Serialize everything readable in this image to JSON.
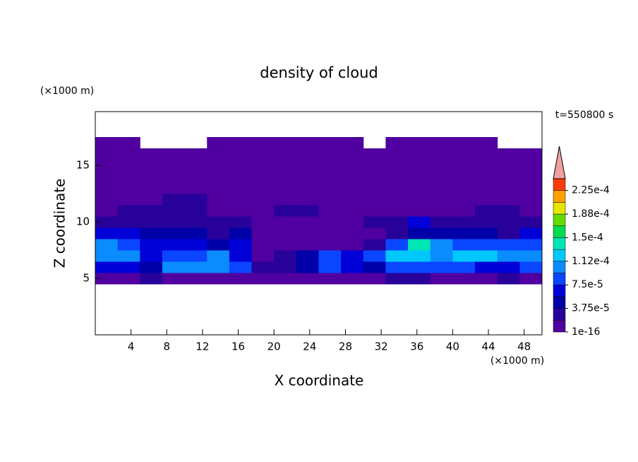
{
  "chart_data": {
    "type": "contour",
    "title": "density of cloud",
    "xlabel": "X coordinate",
    "ylabel": "Z coordinate",
    "xunit": "(×1000 m)",
    "yunit": "(×1000 m)",
    "time_label": "t=550800 s",
    "xlim": [
      0,
      50
    ],
    "ylim": [
      0,
      19.75
    ],
    "xticks": [
      4,
      8,
      12,
      16,
      20,
      24,
      28,
      32,
      36,
      40,
      44,
      48
    ],
    "yticks": [
      5,
      10,
      15
    ],
    "x": [
      1.25,
      3.75,
      6.25,
      8.75,
      11.25,
      13.75,
      16.25,
      18.75,
      21.25,
      23.75,
      26.25,
      28.75,
      31.25,
      33.75,
      36.25,
      38.75,
      41.25,
      43.75,
      46.25,
      48.75
    ],
    "y": [
      5,
      6,
      7,
      8,
      9,
      10,
      11,
      12,
      13,
      14,
      15,
      16,
      17
    ],
    "z": [
      [
        5e-06,
        5e-06,
        2.5e-05,
        5e-06,
        5e-06,
        5e-06,
        5e-06,
        5e-06,
        5e-06,
        5e-06,
        5e-06,
        5e-06,
        5e-06,
        2.5e-05,
        2.5e-05,
        5e-06,
        5e-06,
        5e-06,
        2.5e-05,
        5e-06
      ],
      [
        6e-05,
        6e-05,
        4.5e-05,
        0.000105,
        0.000105,
        0.000105,
        8.5e-05,
        2.5e-05,
        2.5e-05,
        4.5e-05,
        8.5e-05,
        6e-05,
        4.5e-05,
        8.5e-05,
        8.5e-05,
        8.5e-05,
        8.5e-05,
        6e-05,
        6e-05,
        8.5e-05
      ],
      [
        0.000105,
        0.000105,
        6e-05,
        8.5e-05,
        8.5e-05,
        0.000105,
        6e-05,
        5e-06,
        2.5e-05,
        4.5e-05,
        8.5e-05,
        6e-05,
        8.5e-05,
        0.00012,
        0.00012,
        0.000105,
        0.00012,
        0.00012,
        0.000105,
        0.000105
      ],
      [
        0.000105,
        8.5e-05,
        6e-05,
        6e-05,
        6e-05,
        4.5e-05,
        6e-05,
        5e-06,
        5e-06,
        5e-06,
        5e-06,
        5e-06,
        2.5e-05,
        8.5e-05,
        0.00014,
        0.000105,
        8.5e-05,
        8.5e-05,
        8.5e-05,
        8.5e-05
      ],
      [
        6e-05,
        6e-05,
        4.5e-05,
        4.5e-05,
        4.5e-05,
        2.5e-05,
        4.5e-05,
        5e-06,
        5e-06,
        5e-06,
        5e-06,
        5e-06,
        5e-06,
        2.5e-05,
        4.5e-05,
        4.5e-05,
        4.5e-05,
        4.5e-05,
        2.5e-05,
        6e-05
      ],
      [
        2.5e-05,
        2.5e-05,
        2.5e-05,
        2.5e-05,
        2.5e-05,
        2.5e-05,
        2.5e-05,
        5e-06,
        5e-06,
        5e-06,
        5e-06,
        5e-06,
        2.5e-05,
        2.5e-05,
        6e-05,
        2.5e-05,
        2.5e-05,
        2.5e-05,
        2.5e-05,
        2.5e-05
      ],
      [
        5e-06,
        2.5e-05,
        2.5e-05,
        2.5e-05,
        2.5e-05,
        5e-06,
        5e-06,
        5e-06,
        2.5e-05,
        2.5e-05,
        5e-06,
        5e-06,
        5e-06,
        5e-06,
        5e-06,
        5e-06,
        5e-06,
        2.5e-05,
        2.5e-05,
        5e-06
      ],
      [
        5e-06,
        5e-06,
        5e-06,
        2.5e-05,
        2.5e-05,
        5e-06,
        5e-06,
        5e-06,
        5e-06,
        5e-06,
        5e-06,
        5e-06,
        5e-06,
        5e-06,
        5e-06,
        5e-06,
        5e-06,
        5e-06,
        5e-06,
        5e-06
      ],
      [
        5e-06,
        5e-06,
        5e-06,
        5e-06,
        5e-06,
        5e-06,
        5e-06,
        5e-06,
        5e-06,
        5e-06,
        5e-06,
        5e-06,
        5e-06,
        5e-06,
        5e-06,
        5e-06,
        5e-06,
        5e-06,
        5e-06,
        5e-06
      ],
      [
        5e-06,
        5e-06,
        5e-06,
        5e-06,
        5e-06,
        5e-06,
        5e-06,
        5e-06,
        5e-06,
        5e-06,
        5e-06,
        5e-06,
        5e-06,
        5e-06,
        5e-06,
        5e-06,
        5e-06,
        5e-06,
        5e-06,
        5e-06
      ],
      [
        5e-06,
        5e-06,
        5e-06,
        5e-06,
        5e-06,
        5e-06,
        5e-06,
        5e-06,
        5e-06,
        5e-06,
        5e-06,
        5e-06,
        5e-06,
        5e-06,
        5e-06,
        5e-06,
        5e-06,
        5e-06,
        5e-06,
        5e-06
      ],
      [
        5e-06,
        5e-06,
        5e-06,
        5e-06,
        5e-06,
        5e-06,
        5e-06,
        5e-06,
        5e-06,
        5e-06,
        5e-06,
        5e-06,
        5e-06,
        5e-06,
        5e-06,
        5e-06,
        5e-06,
        5e-06,
        5e-06,
        5e-06
      ],
      [
        5e-06,
        5e-06,
        null,
        null,
        null,
        5e-06,
        5e-06,
        5e-06,
        5e-06,
        5e-06,
        5e-06,
        5e-06,
        null,
        5e-06,
        5e-06,
        5e-06,
        5e-06,
        5e-06,
        null,
        null
      ]
    ],
    "colorbar": {
      "levels": [
        1e-16,
        1.875e-05,
        3.75e-05,
        5.625e-05,
        7.5e-05,
        9.375e-05,
        0.0001125,
        0.00013125,
        0.00015,
        0.00016875,
        0.0001875,
        0.00020625,
        0.000225,
        0.00024375
      ],
      "colors": [
        "#5000a0",
        "#28009a",
        "#0000a8",
        "#0000d8",
        "#0a46ff",
        "#0a8cff",
        "#00c8ff",
        "#00e6b4",
        "#00dc50",
        "#64dc00",
        "#e6e600",
        "#ffa000",
        "#ff3c00"
      ],
      "extend_color": "#f0a0a0",
      "ticks": [
        {
          "value": 1e-16,
          "label": "1e-16"
        },
        {
          "value": 3.75e-05,
          "label": "3.75e-5"
        },
        {
          "value": 7.5e-05,
          "label": "7.5e-5"
        },
        {
          "value": 0.0001125,
          "label": "1.12e-4"
        },
        {
          "value": 0.00015,
          "label": "1.5e-4"
        },
        {
          "value": 0.0001875,
          "label": "1.88e-4"
        },
        {
          "value": 0.000225,
          "label": "2.25e-4"
        }
      ]
    }
  }
}
